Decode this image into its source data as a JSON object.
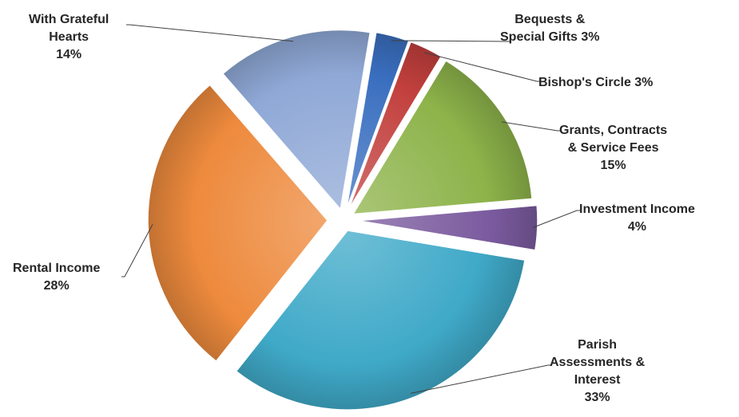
{
  "chart_data": {
    "type": "pie",
    "slices": [
      {
        "label": "Bequests &",
        "label2": "Special Gifts 3%",
        "pct_text": "",
        "value": 3,
        "color": "#3A6FC0"
      },
      {
        "label": "Bishop's Circle  3%",
        "label2": "",
        "pct_text": "",
        "value": 3,
        "color": "#C2403D"
      },
      {
        "label": "Grants, Contracts",
        "label2": "& Service Fees",
        "pct_text": "15%",
        "value": 15,
        "color": "#8DB34A"
      },
      {
        "label": "Investment Income",
        "label2": "",
        "pct_text": "4%",
        "value": 4,
        "color": "#7A5A9E"
      },
      {
        "label": "Parish",
        "label2": "Assessments &",
        "label3": "Interest",
        "pct_text": "33%",
        "value": 33,
        "color": "#3FA9C8"
      },
      {
        "label": "Rental Income",
        "label2": "",
        "pct_text": "28%",
        "value": 28,
        "color": "#ED8A3D"
      },
      {
        "label": "With Grateful",
        "label2": "Hearts",
        "pct_text": "14%",
        "value": 14,
        "color": "#8FA8D6"
      }
    ],
    "legend": "none",
    "exploded": true
  }
}
